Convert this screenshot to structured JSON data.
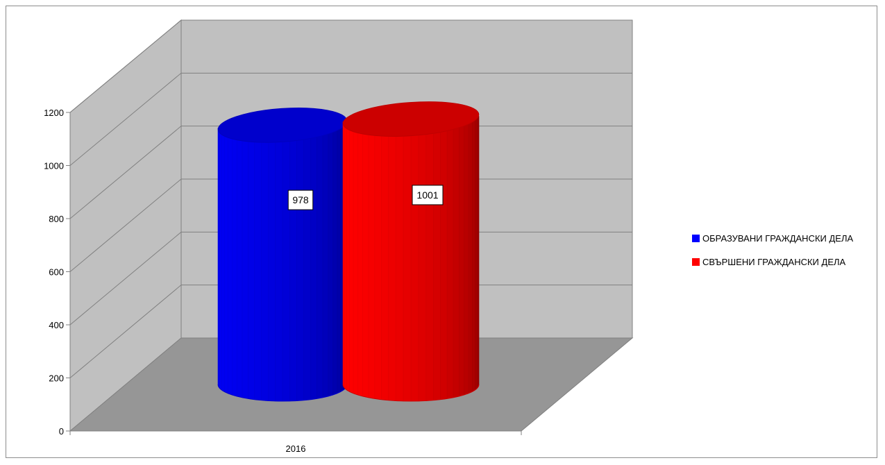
{
  "chart_data": {
    "type": "bar",
    "shape": "cylinder-3d",
    "categories": [
      "2016"
    ],
    "series": [
      {
        "name": "ОБРАЗУВАНИ ГРАЖДАНСКИ ДЕЛА",
        "values": [
          978
        ],
        "color": "#0000ff"
      },
      {
        "name": "СВЪРШЕНИ ГРАЖДАНСКИ ДЕЛА",
        "values": [
          1001
        ],
        "color": "#ff0000"
      }
    ],
    "data_labels": [
      "978",
      "1001"
    ],
    "y_ticks": [
      "0",
      "200",
      "400",
      "600",
      "800",
      "1000",
      "1200"
    ],
    "ylim": [
      0,
      1200
    ],
    "grid": true,
    "legend_position": "right",
    "colors": {
      "wall": "#c0c0c0",
      "floor": "#969696",
      "gridline": "#808080"
    }
  }
}
